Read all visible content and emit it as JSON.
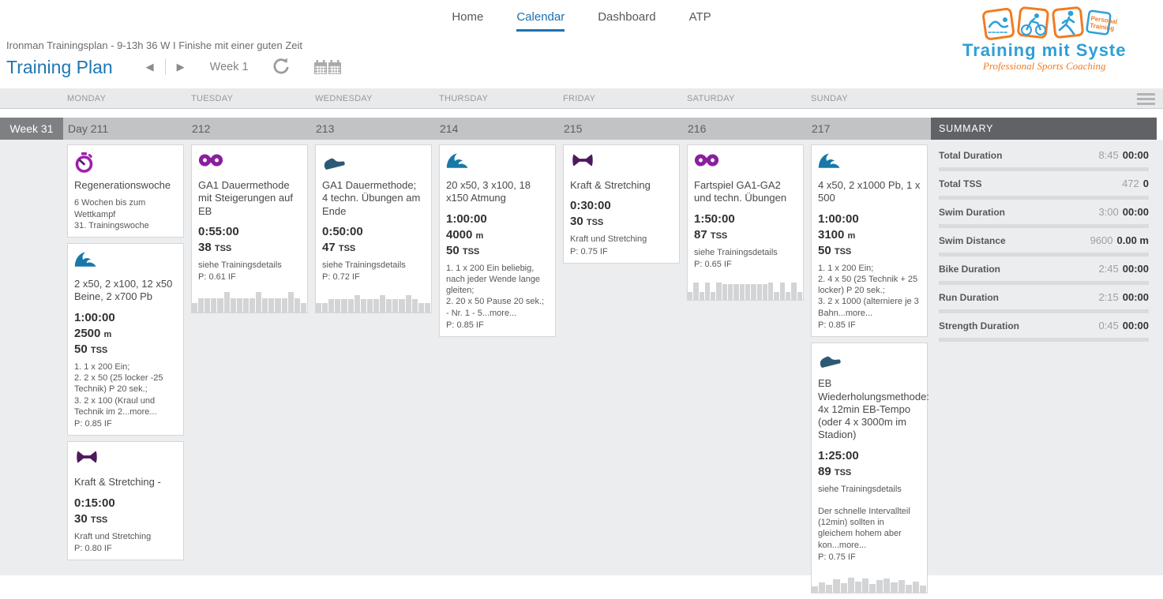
{
  "colors": {
    "accent_blue": "#1c70b0",
    "title_blue": "#1f76b4",
    "logo_blue": "#2d9fd8",
    "logo_orange": "#f07c23",
    "swim": "#1878a8",
    "run": "#2d5a73",
    "bike": "#8a1f9e",
    "strength": "#4d1a5e",
    "note": "#a21caf",
    "graph_bar": "#d3d4d6",
    "week_badge_bg": "#7f8083",
    "day_strip_bg": "#c2c3c5",
    "summary_header_bg": "#606266"
  },
  "nav": {
    "items": [
      {
        "label": "Home",
        "active": false
      },
      {
        "label": "Calendar",
        "active": true
      },
      {
        "label": "Dashboard",
        "active": false
      },
      {
        "label": "ATP",
        "active": false
      }
    ]
  },
  "header": {
    "subtitle": "Ironman Trainingsplan - 9-13h 36 W I Finishe mit einer guten Zeit",
    "title": "Training Plan",
    "week_selector": "Week 1"
  },
  "logo": {
    "title": "Training mit System",
    "tagline": "Professional Sports Coaching",
    "badge_line1": "Personal",
    "badge_line2": "Training"
  },
  "calendar": {
    "day_headers": [
      "MONDAY",
      "TUESDAY",
      "WEDNESDAY",
      "THURSDAY",
      "FRIDAY",
      "SATURDAY",
      "SUNDAY"
    ],
    "week_label": "Week 31",
    "day_numbers": [
      "Day 211",
      "212",
      "213",
      "214",
      "215",
      "216",
      "217"
    ],
    "days": [
      {
        "day": "MONDAY",
        "cards": [
          {
            "kind": "note",
            "icon": "stopwatch-icon",
            "title": "Regenerationswoche",
            "desc": [
              "6 Wochen bis zum Wettkampf\n31. Trainingswoche"
            ]
          },
          {
            "kind": "swim",
            "icon": "swim-icon",
            "title": "2 x50, 2 x100, 12 x50 Beine, 2 x700 Pb",
            "duration": "1:00:00",
            "distance": "2500",
            "distance_unit": "m",
            "tss": "50",
            "tss_unit": "TSS",
            "desc": [
              "1. 1 x 200 Ein;\n2. 2 x 50 (25 locker -25 Technik) P 20 sek.;\n3. 2 x 100 (Kraul und Technik im 2...more..."
            ],
            "pace": "P: 0.85 IF"
          },
          {
            "kind": "strength",
            "icon": "dumbbell-icon",
            "title": "Kraft & Stretching -",
            "duration": "0:15:00",
            "tss": "30",
            "tss_unit": "TSS",
            "desc": [
              "Kraft und Stretching"
            ],
            "pace": "P: 0.80 IF"
          }
        ]
      },
      {
        "day": "TUESDAY",
        "cards": [
          {
            "kind": "bike",
            "icon": "bike-icon",
            "title": "GA1 Dauermethode mit Steigerungen auf EB",
            "duration": "0:55:00",
            "tss": "38",
            "tss_unit": "TSS",
            "desc": [
              "siehe Trainingsdetails"
            ],
            "pace": "P: 0.61 IF",
            "graph": [
              42,
              62,
              62,
              62,
              62,
              88,
              62,
              62,
              62,
              62,
              88,
              62,
              62,
              62,
              62,
              88,
              62,
              42
            ]
          }
        ]
      },
      {
        "day": "WEDNESDAY",
        "cards": [
          {
            "kind": "run",
            "icon": "run-icon",
            "title": "GA1 Dauermethode; 4 techn. Übungen am Ende",
            "duration": "0:50:00",
            "tss": "47",
            "tss_unit": "TSS",
            "desc": [
              "siehe Trainingsdetails"
            ],
            "pace": "P: 0.72 IF",
            "graph": [
              40,
              40,
              58,
              58,
              58,
              58,
              74,
              58,
              58,
              58,
              74,
              58,
              58,
              58,
              74,
              58,
              40,
              40
            ]
          }
        ]
      },
      {
        "day": "THURSDAY",
        "cards": [
          {
            "kind": "swim",
            "icon": "swim-icon",
            "title": "20 x50, 3 x100, 18 x150 Atmung",
            "duration": "1:00:00",
            "distance": "4000",
            "distance_unit": "m",
            "tss": "50",
            "tss_unit": "TSS",
            "desc": [
              "1. 1 x 200 Ein beliebig, nach jeder Wende lange gleiten;\n2. 20 x 50 Pause 20 sek.;\n- Nr. 1 - 5...more..."
            ],
            "pace": "P: 0.85 IF"
          }
        ]
      },
      {
        "day": "FRIDAY",
        "cards": [
          {
            "kind": "strength",
            "icon": "dumbbell-icon",
            "title": "Kraft & Stretching",
            "duration": "0:30:00",
            "tss": "30",
            "tss_unit": "TSS",
            "desc": [
              "Kraft und Stretching"
            ],
            "pace": "P: 0.75 IF"
          }
        ]
      },
      {
        "day": "SATURDAY",
        "cards": [
          {
            "kind": "bike",
            "icon": "bike-icon",
            "title": "Fartspiel GA1-GA2 und techn. Übungen",
            "duration": "1:50:00",
            "tss": "87",
            "tss_unit": "TSS",
            "desc": [
              "siehe Trainingsdetails"
            ],
            "pace": "P: 0.65 IF",
            "graph": [
              35,
              75,
              35,
              75,
              35,
              75,
              68,
              68,
              68,
              68,
              68,
              68,
              68,
              68,
              75,
              35,
              75,
              35,
              75,
              35
            ]
          }
        ]
      },
      {
        "day": "SUNDAY",
        "cards": [
          {
            "kind": "swim",
            "icon": "swim-icon",
            "title": "4 x50, 2 x1000 Pb, 1 x 500",
            "duration": "1:00:00",
            "distance": "3100",
            "distance_unit": "m",
            "tss": "50",
            "tss_unit": "TSS",
            "desc": [
              "1. 1 x 200 Ein;\n2. 4 x 50 (25 Technik + 25 locker) P 20 sek.;\n3. 2 x 1000 (alterniere je 3 Bahn...more..."
            ],
            "pace": "P: 0.85 IF"
          },
          {
            "kind": "run",
            "icon": "run-icon",
            "title": "EB Wiederholungsmethode: 4x 12min EB-Tempo (oder 4 x 3000m im Stadion)",
            "duration": "1:25:00",
            "tss": "89",
            "tss_unit": "TSS",
            "desc": [
              "siehe Trainingsdetails",
              "Der schnelle Intervallteil (12min) sollten in gleichem hohem aber kon...more..."
            ],
            "pace": "P: 0.75 IF",
            "graph": [
              28,
              46,
              34,
              58,
              42,
              64,
              48,
              60,
              38,
              54,
              62,
              44,
              56,
              36,
              48,
              30
            ]
          }
        ]
      }
    ]
  },
  "summary": {
    "title": "SUMMARY",
    "rows": [
      {
        "label": "Total Duration",
        "planned": "8:45",
        "actual": "00:00"
      },
      {
        "label": "Total TSS",
        "planned": "472",
        "actual": "0"
      },
      {
        "label": "Swim Duration",
        "planned": "3:00",
        "actual": "00:00"
      },
      {
        "label": "Swim Distance",
        "planned": "9600",
        "actual": "0.00 m"
      },
      {
        "label": "Bike Duration",
        "planned": "2:45",
        "actual": "00:00"
      },
      {
        "label": "Run Duration",
        "planned": "2:15",
        "actual": "00:00"
      },
      {
        "label": "Strength Duration",
        "planned": "0:45",
        "actual": "00:00"
      }
    ]
  }
}
